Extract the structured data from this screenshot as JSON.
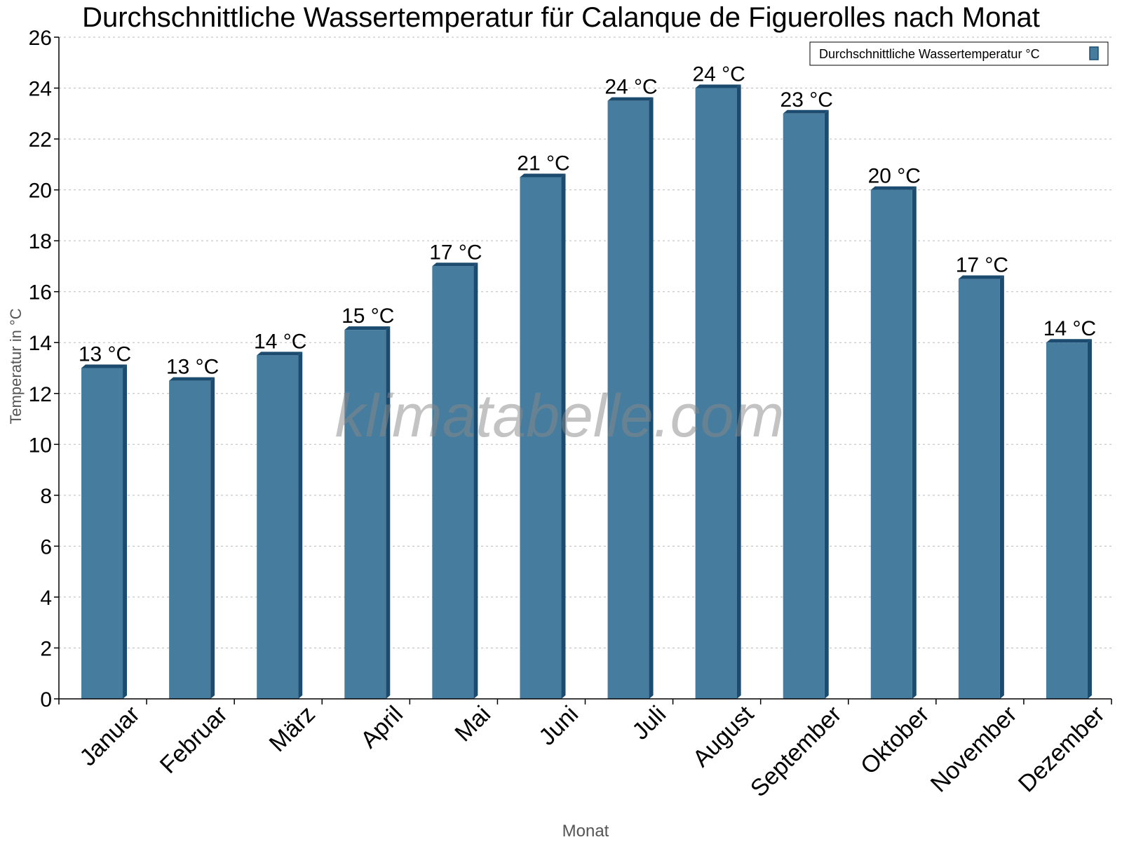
{
  "chart_data": {
    "type": "bar",
    "title": "Durchschnittliche Wassertemperatur für Calanque de Figuerolles nach Monat",
    "xlabel": "Monat",
    "ylabel": "Temperatur in °C",
    "ylim": [
      0,
      26
    ],
    "yticks": [
      0,
      2,
      4,
      6,
      8,
      10,
      12,
      14,
      16,
      18,
      20,
      22,
      24,
      26
    ],
    "grid": true,
    "legend_position": "top-right",
    "categories": [
      "Januar",
      "Februar",
      "März",
      "April",
      "Mai",
      "Juni",
      "Juli",
      "August",
      "September",
      "Oktober",
      "November",
      "Dezember"
    ],
    "series": [
      {
        "name": "Durchschnittliche Wassertemperatur °C",
        "values": [
          13,
          12.5,
          13.5,
          14.5,
          17,
          20.5,
          23.5,
          24,
          23,
          20,
          16.5,
          14
        ],
        "labels": [
          "13 °C",
          "13 °C",
          "14 °C",
          "15 °C",
          "17 °C",
          "21 °C",
          "24 °C",
          "24 °C",
          "23 °C",
          "20 °C",
          "17 °C",
          "14 °C"
        ],
        "color": "#467c9e",
        "side_color": "#1b4b6e"
      }
    ],
    "watermark": "klimatabelle.com"
  }
}
